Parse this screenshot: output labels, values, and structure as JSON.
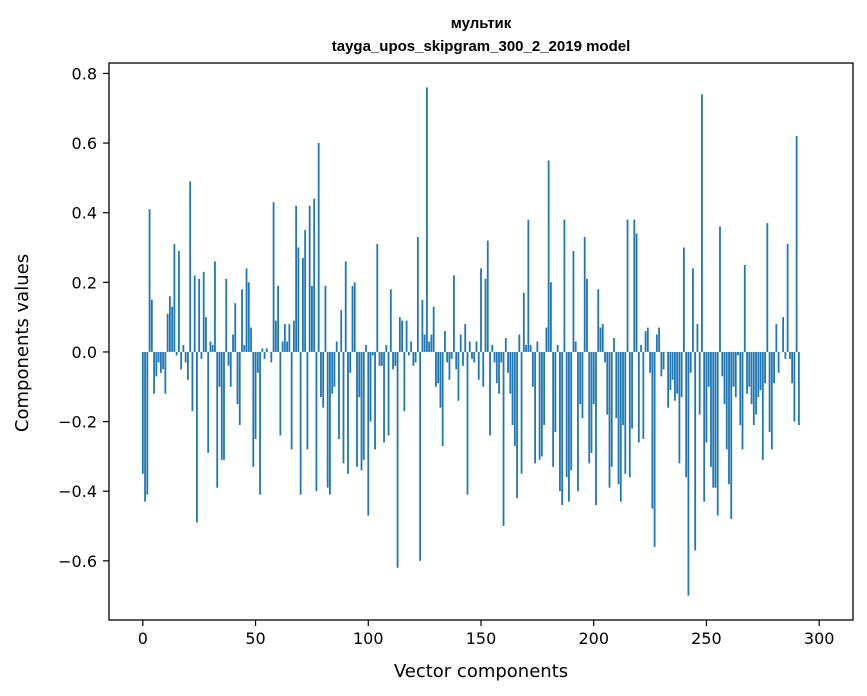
{
  "chart_data": {
    "type": "bar",
    "title": "мультик",
    "subtitle": "tayga_upos_skipgram_300_2_2019 model",
    "xlabel": "Vector components",
    "ylabel": "Components values",
    "xlim": [
      -15,
      315
    ],
    "ylim": [
      -0.77,
      0.83
    ],
    "xticks": [
      0,
      50,
      100,
      150,
      200,
      250,
      300
    ],
    "xtick_labels": [
      "0",
      "50",
      "100",
      "150",
      "200",
      "250",
      "300"
    ],
    "yticks": [
      -0.6,
      -0.4,
      -0.2,
      0.0,
      0.2,
      0.4,
      0.6,
      0.8
    ],
    "ytick_labels": [
      "−0.6",
      "−0.4",
      "−0.2",
      "0.0",
      "0.2",
      "0.4",
      "0.6",
      "0.8"
    ],
    "grid": false,
    "bar_color": "#1f77b4",
    "x": "0..299 (component index)",
    "values": [
      -0.35,
      -0.43,
      -0.41,
      0.41,
      0.15,
      -0.12,
      -0.07,
      -0.03,
      -0.06,
      -0.05,
      -0.12,
      0.11,
      0.16,
      0.13,
      0.31,
      -0.01,
      0.29,
      -0.05,
      0.02,
      -0.03,
      -0.08,
      0.49,
      -0.17,
      0.22,
      -0.49,
      0.21,
      -0.02,
      0.23,
      0.1,
      -0.29,
      0.03,
      0.02,
      0.26,
      -0.39,
      -0.1,
      -0.31,
      -0.31,
      0.21,
      -0.04,
      -0.1,
      0.05,
      0.14,
      -0.15,
      -0.21,
      0.18,
      0.02,
      0.24,
      0.2,
      0.07,
      -0.33,
      -0.25,
      -0.06,
      -0.41,
      0.01,
      -0.02,
      0.01,
      0.0,
      -0.03,
      0.43,
      0.09,
      0.19,
      -0.24,
      0.03,
      0.08,
      0.03,
      0.08,
      -0.28,
      0.09,
      0.42,
      0.3,
      -0.41,
      0.27,
      0.35,
      -0.28,
      0.42,
      0.19,
      0.44,
      -0.4,
      0.6,
      -0.13,
      -0.16,
      0.19,
      -0.39,
      -0.41,
      -0.12,
      -0.1,
      0.03,
      -0.25,
      0.12,
      -0.32,
      0.26,
      -0.35,
      -0.06,
      0.19,
      0.2,
      -0.33,
      -0.13,
      -0.34,
      -0.31,
      0.02,
      -0.47,
      -0.2,
      -0.01,
      -0.28,
      0.31,
      -0.04,
      -0.04,
      -0.26,
      0.02,
      -0.24,
      0.18,
      -0.05,
      -0.04,
      -0.62,
      0.1,
      0.09,
      -0.17,
      0.09,
      -0.01,
      0.03,
      -0.04,
      -0.03,
      0.33,
      -0.6,
      0.15,
      0.05,
      0.76,
      0.03,
      0.05,
      0.13,
      -0.1,
      -0.09,
      -0.16,
      -0.27,
      0.06,
      -0.03,
      -0.08,
      -0.02,
      0.22,
      -0.05,
      -0.14,
      0.05,
      -0.04,
      0.08,
      -0.41,
      0.03,
      -0.02,
      -0.03,
      0.03,
      -0.08,
      0.24,
      -0.1,
      0.21,
      0.32,
      -0.24,
      0.02,
      -0.03,
      -0.09,
      -0.12,
      -0.03,
      -0.5,
      0.04,
      -0.06,
      -0.12,
      -0.21,
      -0.27,
      -0.42,
      0.05,
      -0.35,
      0.17,
      0.02,
      0.38,
      0.02,
      -0.1,
      -0.32,
      0.03,
      -0.31,
      -0.3,
      -0.21,
      0.07,
      0.55,
      0.2,
      -0.33,
      -0.23,
      0.02,
      -0.4,
      -0.44,
      0.38,
      -0.36,
      -0.43,
      -0.34,
      0.29,
      0.03,
      -0.4,
      -0.15,
      -0.19,
      0.33,
      0.21,
      -0.32,
      -0.29,
      -0.15,
      -0.44,
      0.18,
      0.07,
      0.08,
      -0.03,
      -0.18,
      -0.39,
      -0.33,
      0.04,
      -0.19,
      -0.38,
      -0.43,
      -0.21,
      -0.35,
      0.38,
      -0.36,
      -0.22,
      0.38,
      0.34,
      -0.26,
      0.02,
      -0.25,
      0.06,
      0.07,
      -0.06,
      -0.45,
      -0.56,
      0.05,
      0.07,
      -0.07,
      -0.05,
      0.0,
      -0.16,
      -0.11,
      -0.08,
      -0.14,
      -0.12,
      -0.32,
      -0.13,
      0.3,
      -0.36,
      -0.7,
      -0.06,
      0.24,
      -0.57,
      0.08,
      -0.18,
      0.74,
      -0.43,
      -0.26,
      -0.1,
      -0.33,
      -0.39,
      -0.39,
      -0.47,
      0.36,
      -0.07,
      -0.15,
      -0.28,
      -0.38,
      -0.48,
      -0.1,
      -0.13,
      -0.01,
      -0.21,
      -0.28,
      0.25,
      -0.12,
      -0.1,
      -0.15,
      -0.21,
      -0.18,
      -0.13,
      -0.11,
      -0.31,
      -0.09,
      0.37,
      -0.23,
      -0.28,
      -0.09,
      0.08,
      -0.06,
      0.0,
      0.1,
      -0.02,
      0.31,
      -0.02,
      -0.09,
      -0.2,
      0.62,
      -0.21
    ]
  }
}
